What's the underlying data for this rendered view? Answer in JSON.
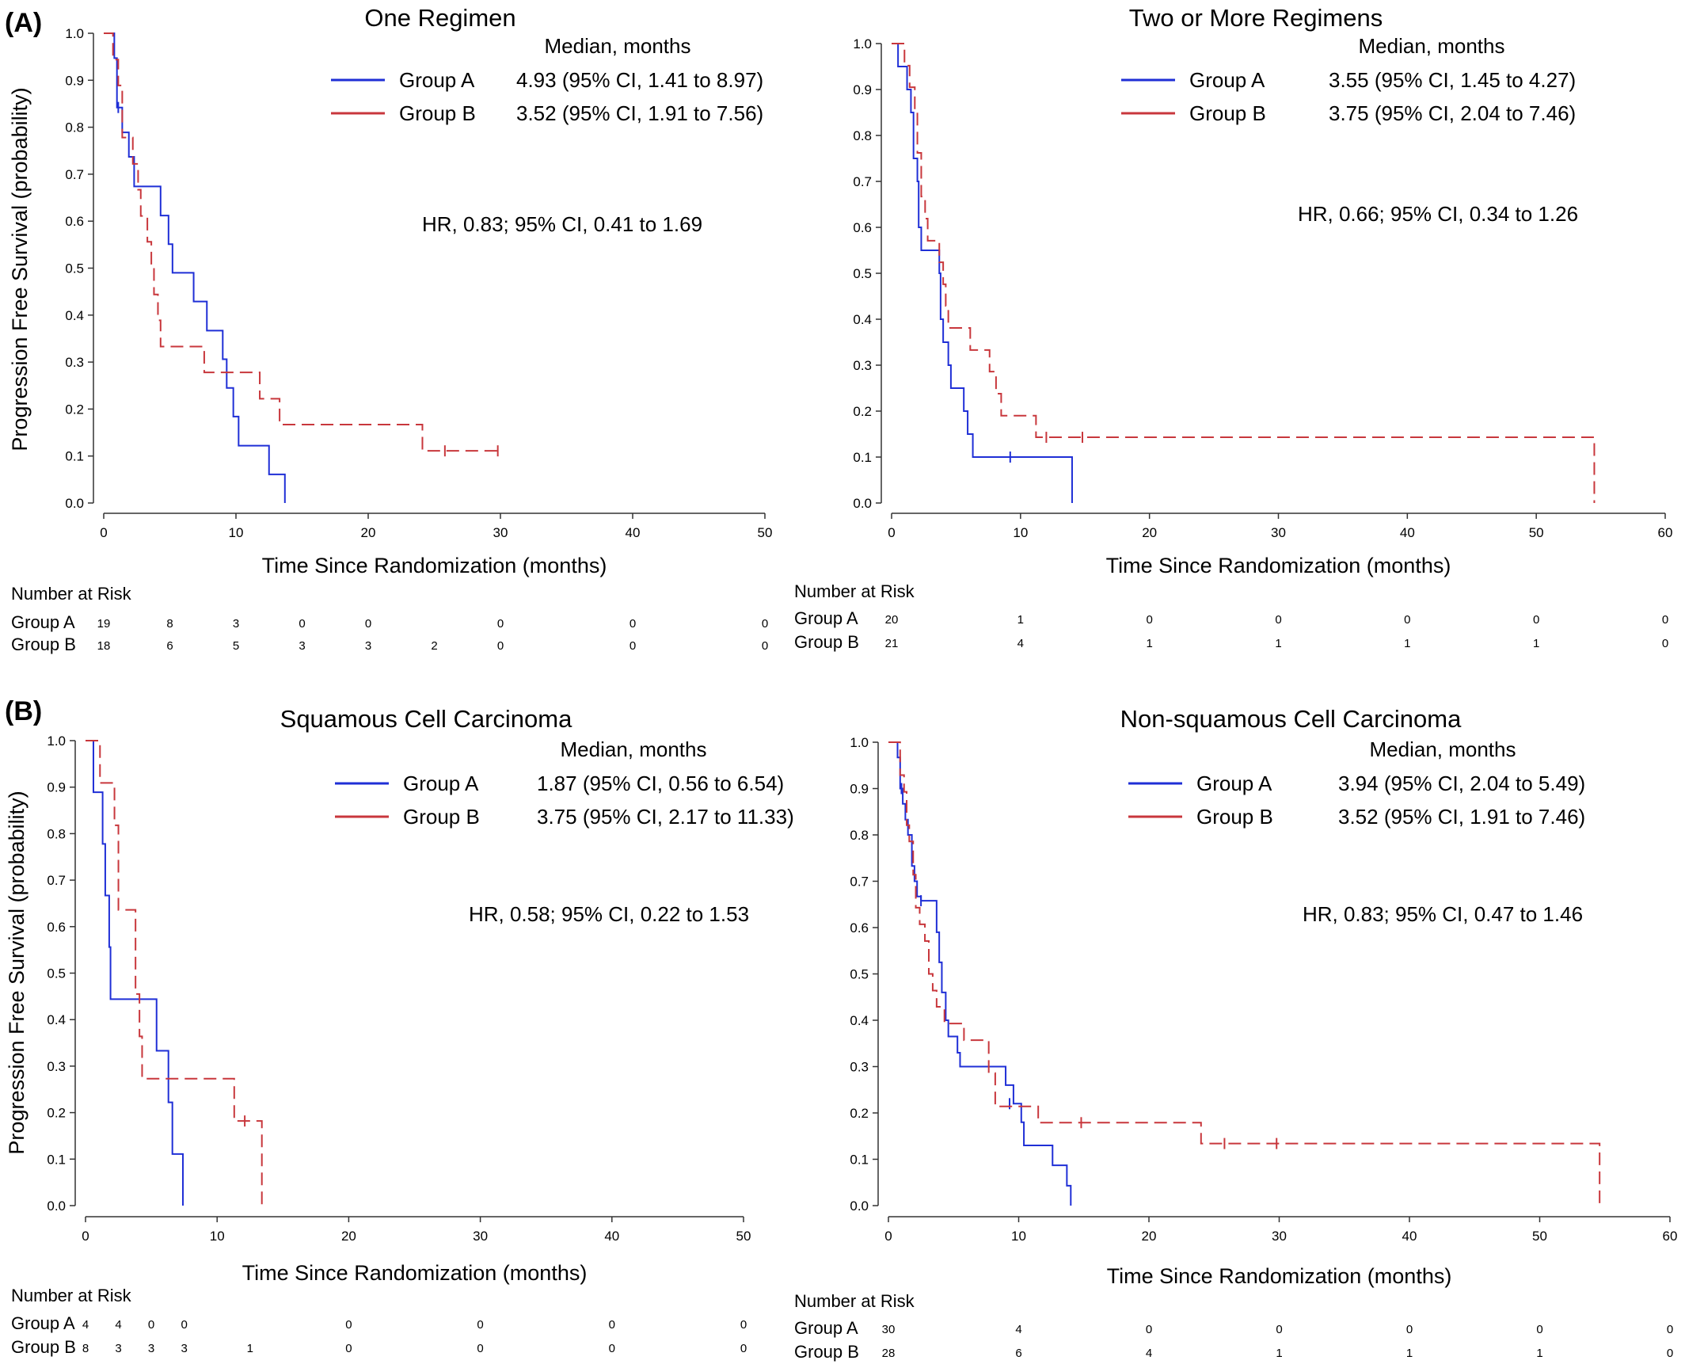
{
  "panel_labels": [
    "(A)",
    "(B)"
  ],
  "risk_table_title": "Number at Risk",
  "colors": {
    "group_a": "#1f2fd6",
    "group_b": "#c8373c",
    "axis": "#333333"
  },
  "chart_data": [
    {
      "type": "line",
      "title": "One Regimen",
      "xlabel": "Time Since Randomization (months)",
      "ylabel": "Progression Free Survival (probability)",
      "xlim": [
        0,
        50
      ],
      "ylim": [
        0,
        1
      ],
      "xticks": [
        "0",
        "10",
        "20",
        "30",
        "40",
        "50"
      ],
      "yticks": [
        "0.0",
        "0.1",
        "0.2",
        "0.3",
        "0.4",
        "0.5",
        "0.6",
        "0.7",
        "0.8",
        "0.9",
        "1.0"
      ],
      "legend_title": "Median, months",
      "series": [
        {
          "name": "Group A",
          "median": "4.93 (95% CI, 1.41 to 8.97)",
          "steps": [
            [
              0,
              1.0
            ],
            [
              0.8,
              0.947
            ],
            [
              1.0,
              0.842
            ],
            [
              1.4,
              0.789
            ],
            [
              1.9,
              0.737
            ],
            [
              2.3,
              0.674
            ],
            [
              4.1,
              0.674
            ],
            [
              4.3,
              0.612
            ],
            [
              4.9,
              0.551
            ],
            [
              5.2,
              0.49
            ],
            [
              6.8,
              0.49
            ],
            [
              6.8,
              0.429
            ],
            [
              7.8,
              0.429
            ],
            [
              7.8,
              0.367
            ],
            [
              9.0,
              0.367
            ],
            [
              9.0,
              0.306
            ],
            [
              9.3,
              0.306
            ],
            [
              9.3,
              0.245
            ],
            [
              9.8,
              0.245
            ],
            [
              9.8,
              0.184
            ],
            [
              10.2,
              0.184
            ],
            [
              10.2,
              0.122
            ],
            [
              12.5,
              0.122
            ],
            [
              12.5,
              0.061
            ],
            [
              13.7,
              0.061
            ],
            [
              13.7,
              0.0
            ]
          ],
          "censors": [
            [
              1.1,
              0.842
            ]
          ]
        },
        {
          "name": "Group B",
          "median": "3.52 (95% CI, 1.91 to 7.56)",
          "steps": [
            [
              0,
              1.0
            ],
            [
              0.7,
              1.0
            ],
            [
              0.7,
              0.944
            ],
            [
              1.1,
              0.889
            ],
            [
              1.4,
              0.778
            ],
            [
              2.2,
              0.722
            ],
            [
              2.6,
              0.667
            ],
            [
              2.8,
              0.611
            ],
            [
              3.3,
              0.556
            ],
            [
              3.6,
              0.5
            ],
            [
              3.8,
              0.444
            ],
            [
              4.1,
              0.389
            ],
            [
              4.3,
              0.333
            ],
            [
              7.6,
              0.333
            ],
            [
              7.6,
              0.278
            ],
            [
              11.8,
              0.278
            ],
            [
              11.8,
              0.222
            ],
            [
              13.3,
              0.222
            ],
            [
              13.3,
              0.167
            ],
            [
              24.1,
              0.167
            ],
            [
              24.1,
              0.111
            ],
            [
              30.0,
              0.111
            ]
          ],
          "censors": [
            [
              25.8,
              0.111
            ],
            [
              29.8,
              0.111
            ]
          ]
        }
      ],
      "hr": "HR, 0.83; 95% CI, 0.41 to 1.69",
      "risk": {
        "x": [
          0,
          5,
          10,
          15,
          20,
          25,
          30,
          40,
          50
        ],
        "Group A": [
          "19",
          "8",
          "3",
          "0",
          "0",
          "",
          "0",
          "0",
          "0"
        ],
        "Group B": [
          "18",
          "6",
          "5",
          "3",
          "3",
          "2",
          "0",
          "0",
          "0"
        ]
      }
    },
    {
      "type": "line",
      "title": "Two or More Regimens",
      "xlabel": "Time Since Randomization (months)",
      "ylabel": "",
      "xlim": [
        0,
        60
      ],
      "ylim": [
        0,
        1
      ],
      "xticks": [
        "0",
        "10",
        "20",
        "30",
        "40",
        "50",
        "60"
      ],
      "yticks": [
        "0.0",
        "0.1",
        "0.2",
        "0.3",
        "0.4",
        "0.5",
        "0.6",
        "0.7",
        "0.8",
        "0.9",
        "1.0"
      ],
      "legend_title": "Median, months",
      "series": [
        {
          "name": "Group A",
          "median": "3.55 (95% CI, 1.45 to 4.27)",
          "steps": [
            [
              0,
              1.0
            ],
            [
              0.5,
              1.0
            ],
            [
              0.5,
              0.95
            ],
            [
              1.2,
              0.95
            ],
            [
              1.2,
              0.9
            ],
            [
              1.5,
              0.85
            ],
            [
              1.7,
              0.75
            ],
            [
              2.0,
              0.7
            ],
            [
              2.1,
              0.6
            ],
            [
              2.3,
              0.55
            ],
            [
              3.5,
              0.55
            ],
            [
              3.7,
              0.5
            ],
            [
              3.8,
              0.4
            ],
            [
              4.0,
              0.35
            ],
            [
              4.4,
              0.3
            ],
            [
              4.6,
              0.25
            ],
            [
              5.6,
              0.25
            ],
            [
              5.6,
              0.2
            ],
            [
              5.9,
              0.15
            ],
            [
              6.3,
              0.15
            ],
            [
              6.3,
              0.1
            ],
            [
              14.0,
              0.1
            ],
            [
              14.0,
              0.0
            ]
          ],
          "censors": [
            [
              9.2,
              0.1
            ]
          ]
        },
        {
          "name": "Group B",
          "median": "3.75 (95% CI, 2.04 to 7.46)",
          "steps": [
            [
              0,
              1.0
            ],
            [
              1.0,
              1.0
            ],
            [
              1.0,
              0.952
            ],
            [
              1.4,
              0.905
            ],
            [
              1.8,
              0.857
            ],
            [
              2.0,
              0.762
            ],
            [
              2.3,
              0.667
            ],
            [
              2.6,
              0.619
            ],
            [
              2.8,
              0.571
            ],
            [
              3.5,
              0.571
            ],
            [
              3.7,
              0.524
            ],
            [
              4.0,
              0.476
            ],
            [
              4.2,
              0.429
            ],
            [
              4.4,
              0.381
            ],
            [
              6.1,
              0.381
            ],
            [
              6.1,
              0.333
            ],
            [
              7.6,
              0.333
            ],
            [
              7.6,
              0.286
            ],
            [
              8.1,
              0.286
            ],
            [
              8.1,
              0.238
            ],
            [
              8.5,
              0.238
            ],
            [
              8.5,
              0.19
            ],
            [
              11.2,
              0.19
            ],
            [
              11.2,
              0.143
            ],
            [
              54.5,
              0.143
            ],
            [
              54.5,
              0.0
            ]
          ],
          "censors": [
            [
              12.0,
              0.143
            ],
            [
              14.8,
              0.143
            ]
          ]
        }
      ],
      "hr": "HR, 0.66; 95% CI, 0.34 to 1.26",
      "risk": {
        "x": [
          0,
          10,
          20,
          30,
          40,
          50,
          60
        ],
        "Group A": [
          "20",
          "1",
          "0",
          "0",
          "0",
          "0",
          "0"
        ],
        "Group B": [
          "21",
          "4",
          "1",
          "1",
          "1",
          "1",
          "0"
        ]
      }
    },
    {
      "type": "line",
      "title": "Squamous Cell Carcinoma",
      "xlabel": "Time Since Randomization (months)",
      "ylabel": "Progression Free Survival (probability)",
      "xlim": [
        0,
        50
      ],
      "ylim": [
        0,
        1
      ],
      "xticks": [
        "0",
        "10",
        "20",
        "30",
        "40",
        "50"
      ],
      "yticks": [
        "0.0",
        "0.1",
        "0.2",
        "0.3",
        "0.4",
        "0.5",
        "0.6",
        "0.7",
        "0.8",
        "0.9",
        "1.0"
      ],
      "legend_title": "Median, months",
      "series": [
        {
          "name": "Group A",
          "median": "1.87 (95% CI, 0.56 to 6.54)",
          "steps": [
            [
              0,
              1.0
            ],
            [
              0.6,
              1.0
            ],
            [
              0.6,
              0.889
            ],
            [
              1.3,
              0.889
            ],
            [
              1.3,
              0.778
            ],
            [
              1.5,
              0.778
            ],
            [
              1.5,
              0.667
            ],
            [
              1.8,
              0.667
            ],
            [
              1.8,
              0.556
            ],
            [
              1.9,
              0.556
            ],
            [
              1.9,
              0.444
            ],
            [
              5.4,
              0.444
            ],
            [
              5.4,
              0.333
            ],
            [
              6.3,
              0.333
            ],
            [
              6.3,
              0.222
            ],
            [
              6.6,
              0.222
            ],
            [
              6.6,
              0.111
            ],
            [
              7.4,
              0.111
            ],
            [
              7.4,
              0.0
            ]
          ],
          "censors": []
        },
        {
          "name": "Group B",
          "median": "3.75 (95% CI, 2.17 to 11.33)",
          "steps": [
            [
              0,
              1.0
            ],
            [
              1.1,
              1.0
            ],
            [
              1.1,
              0.909
            ],
            [
              2.2,
              0.909
            ],
            [
              2.2,
              0.818
            ],
            [
              2.5,
              0.818
            ],
            [
              2.5,
              0.636
            ],
            [
              3.8,
              0.636
            ],
            [
              3.8,
              0.455
            ],
            [
              4.1,
              0.455
            ],
            [
              4.1,
              0.364
            ],
            [
              4.3,
              0.364
            ],
            [
              4.3,
              0.273
            ],
            [
              11.3,
              0.273
            ],
            [
              11.3,
              0.182
            ],
            [
              13.4,
              0.182
            ],
            [
              13.4,
              0.0
            ]
          ],
          "censors": [
            [
              12.1,
              0.182
            ]
          ]
        }
      ],
      "hr": "HR, 0.58; 95% CI, 0.22 to 1.53",
      "risk": {
        "x": [
          0,
          2.5,
          5,
          7.5,
          12.5,
          20,
          30,
          40,
          50
        ],
        "Group A": [
          "4",
          "4",
          "0",
          "0",
          "",
          "0",
          "0",
          "0",
          "0"
        ],
        "Group B": [
          "8",
          "3",
          "3",
          "3",
          "1",
          "0",
          "0",
          "0",
          "0"
        ]
      }
    },
    {
      "type": "line",
      "title": "Non-squamous Cell Carcinoma",
      "xlabel": "Time Since Randomization (months)",
      "ylabel": "",
      "xlim": [
        0,
        60
      ],
      "ylim": [
        0,
        1
      ],
      "xticks": [
        "0",
        "10",
        "20",
        "30",
        "40",
        "50",
        "60"
      ],
      "yticks": [
        "0.0",
        "0.1",
        "0.2",
        "0.3",
        "0.4",
        "0.5",
        "0.6",
        "0.7",
        "0.8",
        "0.9",
        "1.0"
      ],
      "legend_title": "Median, months",
      "series": [
        {
          "name": "Group A",
          "median": "3.94 (95% CI, 2.04 to 5.49)",
          "steps": [
            [
              0,
              1.0
            ],
            [
              0.6,
              1.0
            ],
            [
              0.7,
              0.967
            ],
            [
              0.9,
              0.9
            ],
            [
              1.1,
              0.867
            ],
            [
              1.3,
              0.833
            ],
            [
              1.5,
              0.8
            ],
            [
              1.8,
              0.733
            ],
            [
              2.0,
              0.7
            ],
            [
              2.2,
              0.667
            ],
            [
              2.5,
              0.658
            ],
            [
              3.6,
              0.658
            ],
            [
              3.7,
              0.59
            ],
            [
              3.9,
              0.525
            ],
            [
              4.1,
              0.46
            ],
            [
              4.4,
              0.4
            ],
            [
              4.6,
              0.365
            ],
            [
              5.3,
              0.33
            ],
            [
              5.5,
              0.3
            ],
            [
              8.8,
              0.3
            ],
            [
              9.0,
              0.26
            ],
            [
              9.6,
              0.22
            ],
            [
              10.2,
              0.18
            ],
            [
              10.4,
              0.13
            ],
            [
              12.6,
              0.13
            ],
            [
              12.6,
              0.087
            ],
            [
              13.7,
              0.087
            ],
            [
              13.7,
              0.043
            ],
            [
              14.0,
              0.043
            ],
            [
              14.0,
              0.0
            ]
          ],
          "censors": [
            [
              1.0,
              0.9
            ],
            [
              2.5,
              0.658
            ],
            [
              9.3,
              0.22
            ]
          ]
        },
        {
          "name": "Group B",
          "median": "3.52 (95% CI, 1.91 to 7.46)",
          "steps": [
            [
              0,
              1.0
            ],
            [
              0.8,
              1.0
            ],
            [
              0.9,
              0.929
            ],
            [
              1.2,
              0.893
            ],
            [
              1.4,
              0.821
            ],
            [
              1.6,
              0.786
            ],
            [
              1.9,
              0.714
            ],
            [
              2.1,
              0.643
            ],
            [
              2.4,
              0.607
            ],
            [
              2.8,
              0.571
            ],
            [
              3.1,
              0.5
            ],
            [
              3.4,
              0.464
            ],
            [
              3.7,
              0.429
            ],
            [
              4.3,
              0.393
            ],
            [
              5.8,
              0.393
            ],
            [
              5.8,
              0.357
            ],
            [
              7.7,
              0.357
            ],
            [
              7.7,
              0.286
            ],
            [
              8.2,
              0.286
            ],
            [
              8.2,
              0.214
            ],
            [
              11.5,
              0.214
            ],
            [
              11.5,
              0.179
            ],
            [
              24.0,
              0.179
            ],
            [
              24.0,
              0.134
            ],
            [
              54.6,
              0.134
            ],
            [
              54.6,
              0.0
            ]
          ],
          "censors": [
            [
              14.8,
              0.179
            ],
            [
              25.8,
              0.134
            ],
            [
              29.8,
              0.134
            ]
          ]
        }
      ],
      "hr": "HR, 0.83; 95% CI, 0.47 to 1.46",
      "risk": {
        "x": [
          0,
          10,
          20,
          30,
          40,
          50,
          60
        ],
        "Group A": [
          "30",
          "4",
          "0",
          "0",
          "0",
          "0",
          "0"
        ],
        "Group B": [
          "28",
          "6",
          "4",
          "1",
          "1",
          "1",
          "0"
        ]
      }
    }
  ]
}
